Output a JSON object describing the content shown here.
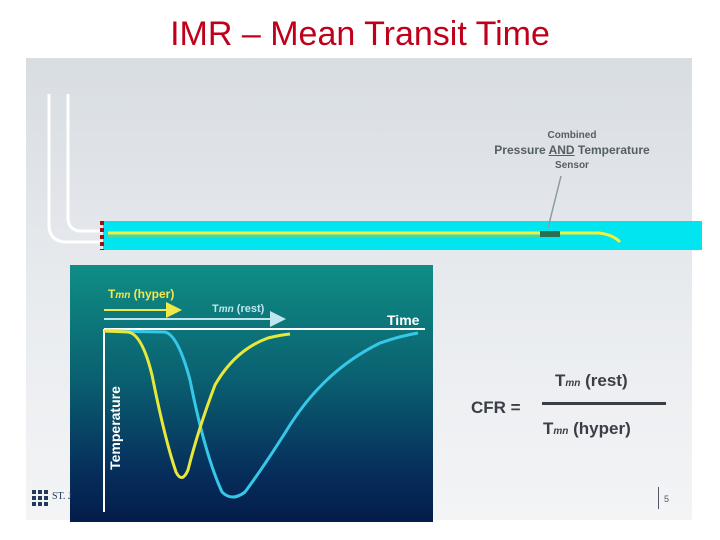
{
  "title": "IMR – Mean Transit Time",
  "sensor_label": {
    "line1": "Combined",
    "line2_pre": "Pressure ",
    "line2_and": "AND",
    "line2_post": " Temperature",
    "line3": "Sensor"
  },
  "chart": {
    "label_hyper_main": "T",
    "label_hyper_sub": "mn",
    "label_hyper_tail": " (hyper)",
    "label_rest_main": "T",
    "label_rest_sub": "mn",
    "label_rest_tail": " (rest)",
    "xlabel": "Time",
    "ylabel": "Temperature"
  },
  "formula": {
    "lhs": "CFR =",
    "num_main": "T",
    "num_sub": "mn",
    "num_tail": " (rest)",
    "den_main": "T",
    "den_sub": "mn",
    "den_tail": " (hyper)"
  },
  "footer": {
    "logo_text": "ST. J",
    "page_number": "5"
  },
  "colors": {
    "title": "#c0001a",
    "vessel": "#00e5f0",
    "wire": "#f2f13a",
    "curve_hyper": "#e8e83a",
    "curve_rest": "#36c8e8"
  }
}
